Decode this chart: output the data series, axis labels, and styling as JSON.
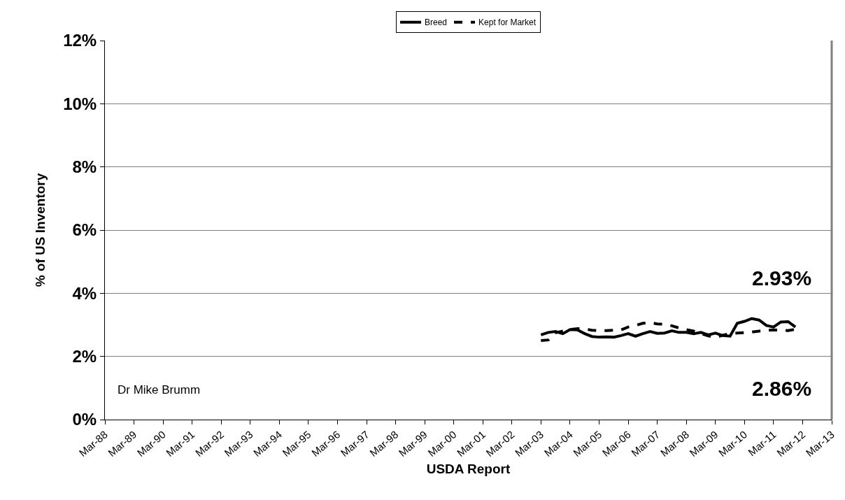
{
  "chart_data": {
    "type": "line",
    "xlabel": "USDA Report",
    "ylabel": "% of US Inventory",
    "x": [
      "2003-03",
      "2003-06",
      "2003-09",
      "2003-12",
      "2004-03",
      "2004-06",
      "2004-09",
      "2004-12",
      "2005-03",
      "2005-06",
      "2005-09",
      "2005-12",
      "2006-03",
      "2006-06",
      "2006-09",
      "2006-12",
      "2007-03",
      "2007-06",
      "2007-09",
      "2007-12",
      "2008-03",
      "2008-06",
      "2008-09",
      "2008-12",
      "2009-03",
      "2009-06",
      "2009-09",
      "2009-12",
      "2010-03",
      "2010-06",
      "2010-09",
      "2010-12",
      "2011-03",
      "2011-06",
      "2011-09",
      "2011-12"
    ],
    "series": [
      {
        "name": "Breed",
        "color": "#000000",
        "line_style": "solid",
        "values": [
          2.68,
          2.76,
          2.79,
          2.72,
          2.85,
          2.84,
          2.72,
          2.63,
          2.61,
          2.62,
          2.61,
          2.66,
          2.72,
          2.64,
          2.72,
          2.79,
          2.73,
          2.74,
          2.81,
          2.76,
          2.76,
          2.72,
          2.76,
          2.68,
          2.74,
          2.66,
          2.64,
          3.05,
          3.11,
          3.2,
          3.15,
          2.98,
          2.93,
          3.09,
          3.1,
          2.93
        ]
      },
      {
        "name": "Kept for Market",
        "color": "#000000",
        "line_style": "dashed",
        "values": [
          2.5,
          2.52,
          2.75,
          2.8,
          2.85,
          2.88,
          2.87,
          2.83,
          2.82,
          2.82,
          2.83,
          2.84,
          2.93,
          2.98,
          3.05,
          3.07,
          3.03,
          3.02,
          2.97,
          2.9,
          2.85,
          2.8,
          2.72,
          2.65,
          2.6,
          2.67,
          2.72,
          2.74,
          2.75,
          2.77,
          2.8,
          2.82,
          2.84,
          2.83,
          2.82,
          2.86
        ]
      }
    ],
    "ylim": [
      0,
      12
    ],
    "yticks": [
      {
        "value": 0,
        "label": "0%"
      },
      {
        "value": 2,
        "label": "2%"
      },
      {
        "value": 4,
        "label": "4%"
      },
      {
        "value": 6,
        "label": "6%"
      },
      {
        "value": 8,
        "label": "8%"
      },
      {
        "value": 10,
        "label": "10%"
      },
      {
        "value": 12,
        "label": "12%"
      }
    ],
    "xlim": [
      "1988-03",
      "2013-03"
    ],
    "xticks": [
      {
        "value": "1988-03",
        "label": "Mar-88"
      },
      {
        "value": "1989-03",
        "label": "Mar-89"
      },
      {
        "value": "1990-03",
        "label": "Mar-90"
      },
      {
        "value": "1991-03",
        "label": "Mar-91"
      },
      {
        "value": "1992-03",
        "label": "Mar-92"
      },
      {
        "value": "1993-03",
        "label": "Mar-93"
      },
      {
        "value": "1994-03",
        "label": "Mar-94"
      },
      {
        "value": "1995-03",
        "label": "Mar-95"
      },
      {
        "value": "1996-03",
        "label": "Mar-96"
      },
      {
        "value": "1997-03",
        "label": "Mar-97"
      },
      {
        "value": "1998-03",
        "label": "Mar-98"
      },
      {
        "value": "1999-03",
        "label": "Mar-99"
      },
      {
        "value": "2000-03",
        "label": "Mar-00"
      },
      {
        "value": "2001-03",
        "label": "Mar-01"
      },
      {
        "value": "2002-03",
        "label": "Mar-02"
      },
      {
        "value": "2003-03",
        "label": "Mar-03"
      },
      {
        "value": "2004-03",
        "label": "Mar-04"
      },
      {
        "value": "2005-03",
        "label": "Mar-05"
      },
      {
        "value": "2006-03",
        "label": "Mar-06"
      },
      {
        "value": "2007-03",
        "label": "Mar-07"
      },
      {
        "value": "2008-03",
        "label": "Mar-08"
      },
      {
        "value": "2009-03",
        "label": "Mar-09"
      },
      {
        "value": "2010-03",
        "label": "Mar-10"
      },
      {
        "value": "2011-03",
        "label": "Mar-11"
      },
      {
        "value": "2012-03",
        "label": "Mar-12"
      },
      {
        "value": "2013-03",
        "label": "Mar-13"
      }
    ],
    "grid": "y",
    "legend": "top",
    "marker": "none",
    "annotations": [
      {
        "text": "2.93%",
        "x": "2011-12",
        "y": 2.93
      },
      {
        "text": "2.86%",
        "x": "2011-12",
        "y": 2.86
      },
      "Dr Mike Brumm"
    ]
  }
}
